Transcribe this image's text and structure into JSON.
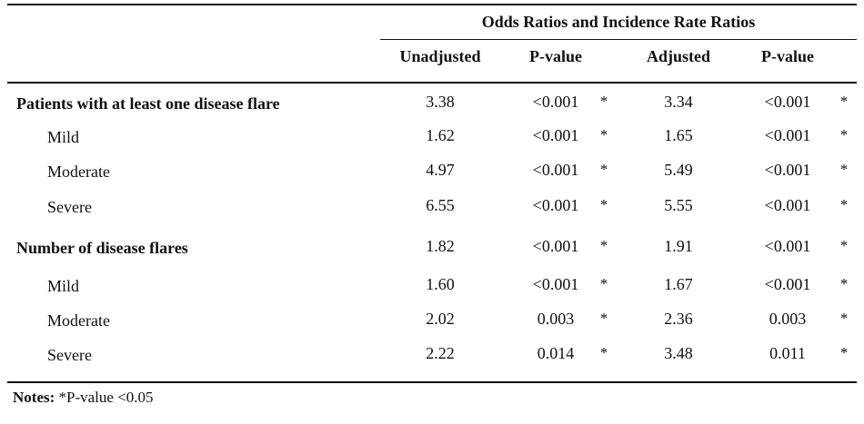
{
  "table": {
    "group_header": "Odds Ratios and Incidence Rate Ratios",
    "columns": [
      "Unadjusted",
      "P-value",
      "Adjusted",
      "P-value"
    ],
    "rows": [
      {
        "label": "Patients with at least one disease flare",
        "heading": true,
        "unadj": "3.38",
        "p1": "<0.001",
        "s1": "*",
        "adj": "3.34",
        "p2": "<0.001",
        "s2": "*"
      },
      {
        "label": "Mild",
        "heading": false,
        "unadj": "1.62",
        "p1": "<0.001",
        "s1": "*",
        "adj": "1.65",
        "p2": "<0.001",
        "s2": "*"
      },
      {
        "label": "Moderate",
        "heading": false,
        "unadj": "4.97",
        "p1": "<0.001",
        "s1": "*",
        "adj": "5.49",
        "p2": "<0.001",
        "s2": "*"
      },
      {
        "label": "Severe",
        "heading": false,
        "unadj": "6.55",
        "p1": "<0.001",
        "s1": "*",
        "adj": "5.55",
        "p2": "<0.001",
        "s2": "*"
      },
      {
        "label": "Number of disease flares",
        "heading": true,
        "unadj": "1.82",
        "p1": "<0.001",
        "s1": "*",
        "adj": "1.91",
        "p2": "<0.001",
        "s2": "*"
      },
      {
        "label": "Mild",
        "heading": false,
        "unadj": "1.60",
        "p1": "<0.001",
        "s1": "*",
        "adj": "1.67",
        "p2": "<0.001",
        "s2": "*"
      },
      {
        "label": "Moderate",
        "heading": false,
        "unadj": "2.02",
        "p1": "0.003",
        "s1": "*",
        "adj": "2.36",
        "p2": "0.003",
        "s2": "*"
      },
      {
        "label": "Severe",
        "heading": false,
        "unadj": "2.22",
        "p1": "0.014",
        "s1": "*",
        "adj": "3.48",
        "p2": "0.011",
        "s2": "*"
      }
    ]
  },
  "notes": {
    "label": "Notes:",
    "text": " *P-value <0.05"
  }
}
